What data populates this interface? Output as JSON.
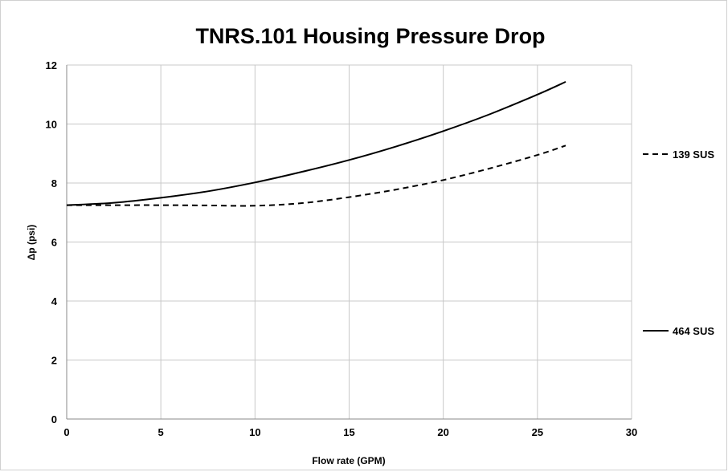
{
  "chart_data": {
    "type": "line",
    "title": "TNRS.101 Housing Pressure Drop",
    "xlabel": "Flow rate (GPM)",
    "ylabel": "Δp (psi)",
    "xlim": [
      0,
      30
    ],
    "ylim": [
      0,
      12
    ],
    "x_ticks": [
      0,
      5,
      10,
      15,
      20,
      25,
      30
    ],
    "y_ticks": [
      0,
      2,
      4,
      6,
      8,
      10,
      12
    ],
    "grid": true,
    "legend_position": "right",
    "series": [
      {
        "name": "139 SUS",
        "style": "dashed",
        "color": "#000000",
        "x": [
          0,
          2.5,
          5,
          7.5,
          10,
          12.5,
          15,
          17.5,
          20,
          22.5,
          25,
          26.5
        ],
        "y": [
          7.25,
          7.25,
          7.25,
          7.24,
          7.23,
          7.32,
          7.52,
          7.78,
          8.1,
          8.5,
          8.95,
          9.27
        ]
      },
      {
        "name": "464 SUS",
        "style": "solid",
        "color": "#000000",
        "x": [
          0,
          2.5,
          5,
          7.5,
          10,
          12.5,
          15,
          17.5,
          20,
          22.5,
          25,
          26.5
        ],
        "y": [
          7.25,
          7.33,
          7.5,
          7.72,
          8.02,
          8.38,
          8.78,
          9.24,
          9.76,
          10.34,
          11.0,
          11.43
        ]
      }
    ]
  }
}
